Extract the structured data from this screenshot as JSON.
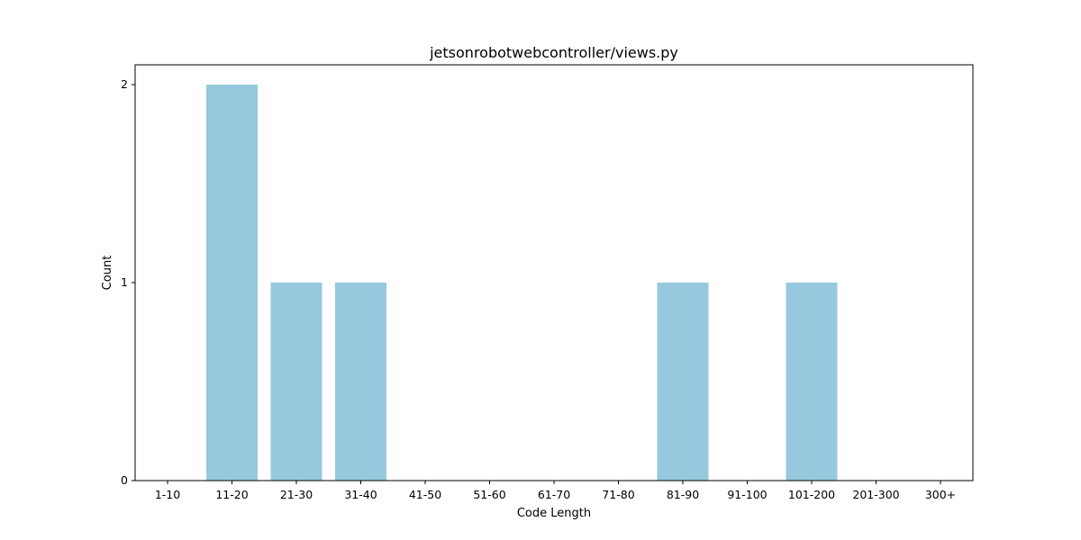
{
  "chart_data": {
    "type": "bar",
    "title": "jetsonrobotwebcontroller/views.py",
    "xlabel": "Code Length",
    "ylabel": "Count",
    "categories": [
      "1-10",
      "11-20",
      "21-30",
      "31-40",
      "41-50",
      "51-60",
      "61-70",
      "71-80",
      "81-90",
      "91-100",
      "101-200",
      "201-300",
      "300+"
    ],
    "values": [
      0,
      2,
      1,
      1,
      0,
      0,
      0,
      0,
      1,
      0,
      1,
      0,
      0
    ],
    "yticks": [
      "0",
      "1",
      "2"
    ],
    "ylim": [
      0,
      2.1
    ],
    "grid": false,
    "legend": "none",
    "bar_color": "#96c9de"
  }
}
